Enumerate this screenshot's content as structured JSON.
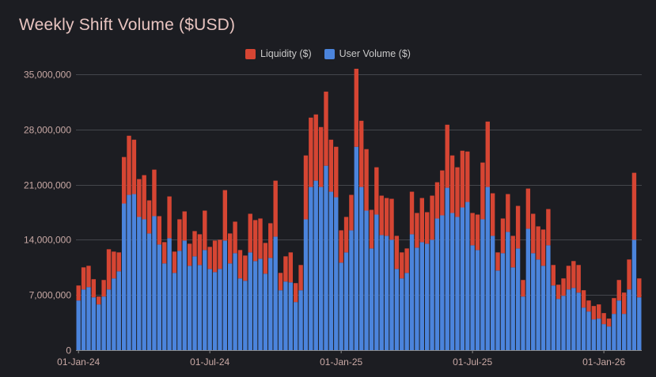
{
  "chart_data": {
    "type": "bar",
    "stacked": true,
    "title": "Weekly Shift Volume ($USD)",
    "xlabel": "",
    "ylabel": "",
    "ylim": [
      0,
      36000000
    ],
    "yticks": [
      0,
      7000000,
      14000000,
      21000000,
      28000000,
      35000000
    ],
    "ytick_labels": [
      "0",
      "7,000,000",
      "14,000,000",
      "21,000,000",
      "28,000,000",
      "35,000,000"
    ],
    "xtick_labels": [
      "01-Jan-24",
      "01-Jul-24",
      "01-Jan-25",
      "01-Jul-25",
      "01-Jan-26"
    ],
    "xtick_week_index": [
      0,
      26,
      52,
      78,
      104
    ],
    "grid": true,
    "legend_position": "top-center",
    "series": [
      {
        "name": "User Volume ($)",
        "color": "#4b84dc",
        "values": [
          6300000,
          7700000,
          8000000,
          6700000,
          5800000,
          6800000,
          7700000,
          9100000,
          10000000,
          18600000,
          19700000,
          19800000,
          16900000,
          16600000,
          14800000,
          17000000,
          13400000,
          11000000,
          14200000,
          9800000,
          12600000,
          13900000,
          10700000,
          11900000,
          10800000,
          12700000,
          10300000,
          9900000,
          10300000,
          13900000,
          11000000,
          12300000,
          9100000,
          8800000,
          12400000,
          11300000,
          11600000,
          9700000,
          11700000,
          14400000,
          7600000,
          8700000,
          8600000,
          6100000,
          7600000,
          16600000,
          20700000,
          21500000,
          20700000,
          23400000,
          20100000,
          19400000,
          11100000,
          12400000,
          15200000,
          25800000,
          20700000,
          17700000,
          12900000,
          17200000,
          14600000,
          14500000,
          14000000,
          10300000,
          9100000,
          9800000,
          14700000,
          13000000,
          13700000,
          13500000,
          14000000,
          16700000,
          17100000,
          20600000,
          17400000,
          16900000,
          18100000,
          18800000,
          13300000,
          12700000,
          16600000,
          20700000,
          14500000,
          10100000,
          12300000,
          15000000,
          10500000,
          12900000,
          6800000,
          15400000,
          12300000,
          11500000,
          10700000,
          13300000,
          8200000,
          6500000,
          6900000,
          7700000,
          7900000,
          7300000,
          5400000,
          4900000,
          3900000,
          4000000,
          3300000,
          3000000,
          4600000,
          6300000,
          4600000,
          7700000,
          14000000,
          6700000
        ]
      },
      {
        "name": "Liquidity ($)",
        "color": "#d64533",
        "values": [
          1900000,
          2800000,
          2700000,
          2300000,
          1000000,
          2100000,
          5100000,
          3400000,
          2400000,
          5900000,
          7500000,
          6900000,
          4800000,
          5600000,
          4200000,
          5900000,
          3600000,
          2700000,
          5300000,
          2700000,
          4000000,
          3700000,
          2800000,
          3200000,
          3900000,
          5000000,
          2800000,
          4000000,
          3700000,
          6400000,
          3800000,
          4000000,
          3600000,
          3200000,
          4900000,
          5200000,
          5100000,
          3900000,
          4400000,
          7100000,
          2200000,
          3200000,
          3800000,
          2400000,
          3200000,
          8100000,
          8800000,
          8400000,
          7600000,
          9400000,
          6600000,
          6400000,
          4100000,
          4500000,
          4500000,
          9900000,
          8400000,
          7800000,
          4900000,
          6000000,
          5000000,
          4800000,
          5200000,
          4200000,
          3300000,
          3100000,
          5400000,
          4400000,
          5600000,
          4000000,
          5600000,
          4600000,
          5700000,
          8000000,
          7300000,
          6300000,
          7200000,
          6400000,
          4100000,
          4500000,
          7200000,
          8300000,
          5400000,
          2300000,
          4400000,
          4800000,
          4000000,
          5400000,
          2100000,
          5100000,
          5000000,
          4200000,
          4600000,
          4600000,
          2600000,
          1800000,
          2200000,
          3000000,
          3400000,
          3500000,
          2200000,
          1400000,
          1700000,
          1800000,
          1400000,
          1000000,
          2000000,
          2600000,
          2700000,
          3800000,
          8500000,
          2400000
        ]
      }
    ]
  }
}
